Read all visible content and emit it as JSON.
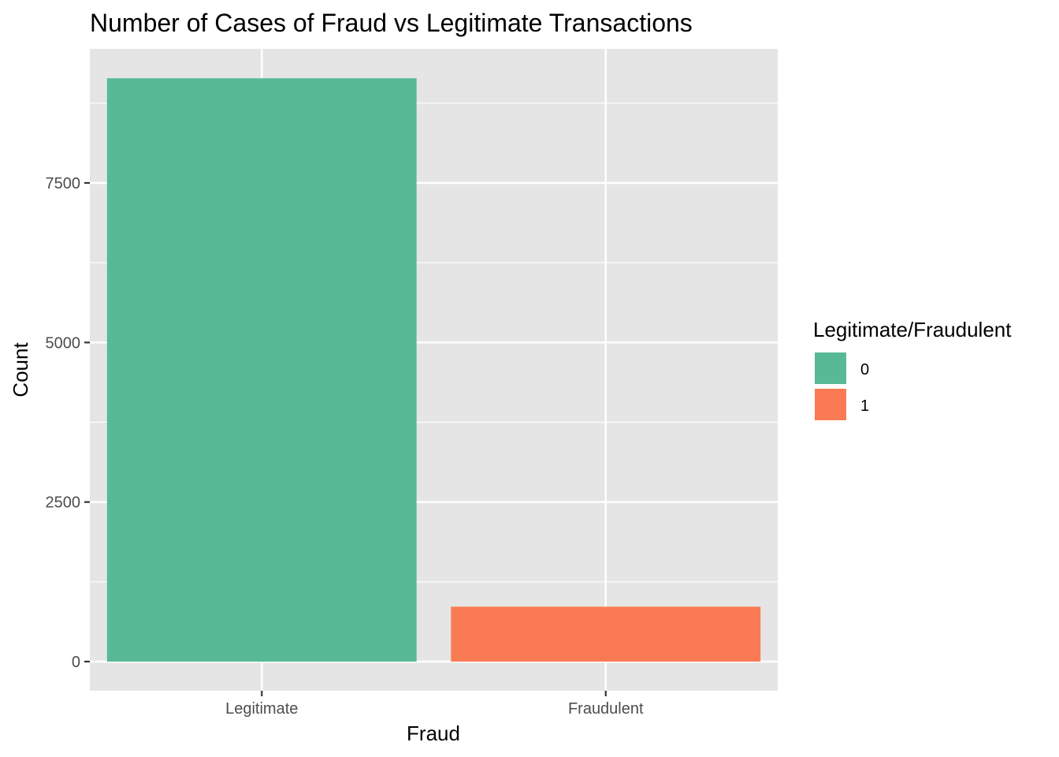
{
  "chart_data": {
    "type": "bar",
    "title": "Number of Cases of Fraud vs Legitimate Transactions",
    "xlabel": "Fraud",
    "ylabel": "Count",
    "categories": [
      "Legitimate",
      "Fraudulent"
    ],
    "values": [
      9140,
      860
    ],
    "fill_keys": [
      "0",
      "1"
    ],
    "ylim": [
      -900,
      9800
    ],
    "yticks": [
      0,
      2500,
      5000,
      7500
    ],
    "ytick_labels": [
      "0",
      "2500",
      "5000",
      "7500"
    ],
    "y_minor_ticks": [
      1250,
      3750,
      6250,
      8750
    ],
    "grid": true,
    "legend": {
      "title": "Legitimate/Fraudulent",
      "position": "right",
      "entries": [
        {
          "label": "0",
          "color": "#57BA94"
        },
        {
          "label": "1",
          "color": "#FA7B53"
        }
      ]
    },
    "colors": {
      "panel_background": "#E5E5E5",
      "grid": "#FFFFFF",
      "bar_fills": [
        "#57BA94",
        "#FA7B53"
      ]
    }
  }
}
